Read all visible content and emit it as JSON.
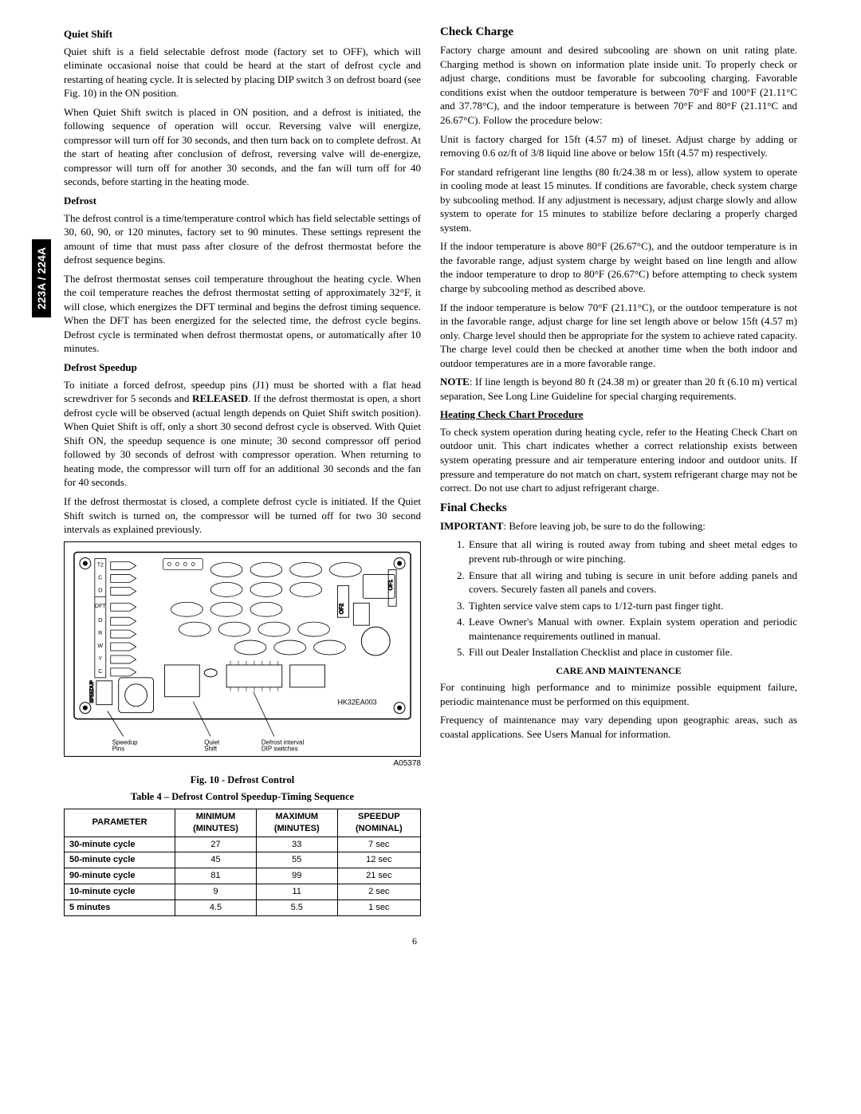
{
  "sidebar_tab": "223A / 224A",
  "left": {
    "quiet_shift_h": "Quiet Shift",
    "quiet_shift_p1": "Quiet shift is a field selectable defrost mode (factory set to OFF), which will eliminate occasional noise that could be heard at the start of defrost cycle and restarting of heating cycle. It is selected by placing DIP switch 3 on defrost board (see Fig. 10) in the ON position.",
    "quiet_shift_p2": "When Quiet Shift switch is placed in ON position, and a defrost is initiated, the following sequence of operation will occur. Reversing valve will energize, compressor will turn off for 30 seconds, and then turn back on to complete defrost. At the start of heating after conclusion of defrost, reversing valve will de-energize, compressor will turn off for another 30 seconds, and the fan will turn off for 40 seconds, before starting in the heating mode.",
    "defrost_h": "Defrost",
    "defrost_p1": "The defrost control is a time/temperature control which has field selectable settings of 30, 60, 90, or 120 minutes, factory set to 90 minutes. These settings represent the amount of time that must pass after closure of the defrost thermostat before the defrost sequence begins.",
    "defrost_p2": "The defrost thermostat senses coil temperature throughout the heating cycle. When the coil temperature reaches the defrost thermostat setting of approximately 32°F, it will close, which energizes the DFT terminal and begins the defrost timing sequence. When the DFT has been energized for the selected time, the defrost cycle begins. Defrost cycle is terminated when defrost thermostat opens, or automatically after 10 minutes.",
    "speedup_h": "Defrost Speedup",
    "speedup_p1": "To initiate a forced defrost, speedup pins (J1) must be shorted with a flat head screwdriver for 5 seconds and RELEASED. If the defrost thermostat is open, a short defrost cycle will be observed (actual length depends on Quiet Shift switch position). When Quiet Shift is off, only a short 30 second defrost cycle is observed. With Quiet Shift ON, the speedup sequence is one minute; 30 second compressor off period followed by 30 seconds of defrost with compressor operation. When returning to heating mode, the compressor will turn off for an additional 30 seconds and the fan for 40 seconds.",
    "speedup_p2": "If the defrost thermostat is closed, a complete defrost cycle is initiated. If the Quiet Shift switch is turned on, the compressor will be turned off for two 30 second intervals as explained previously.",
    "diagram": {
      "part_no": "HK32EA003",
      "lbl_speedup": "Speedup\nPins",
      "lbl_quiet": "Quiet\nShift",
      "lbl_dip": "Defrost interval\nDIP switches",
      "terminals_left": [
        "T2",
        "C",
        "O",
        "DFT",
        "O",
        "R",
        "W",
        "Y",
        "C"
      ],
      "footer_code": "A05378"
    },
    "fig_caption": "Fig. 10 - Defrost Control",
    "table_caption": "Table 4 – Defrost Control Speedup-Timing Sequence",
    "table": {
      "headers": [
        "PARAMETER",
        "MINIMUM (MINUTES)",
        "MAXIMUM (MINUTES)",
        "SPEEDUP (NOMINAL)"
      ],
      "rows": [
        [
          "30-minute cycle",
          "27",
          "33",
          "7 sec"
        ],
        [
          "50-minute cycle",
          "45",
          "55",
          "12 sec"
        ],
        [
          "90-minute cycle",
          "81",
          "99",
          "21 sec"
        ],
        [
          "10-minute cycle",
          "9",
          "11",
          "2 sec"
        ],
        [
          "5 minutes",
          "4.5",
          "5.5",
          "1 sec"
        ]
      ]
    }
  },
  "right": {
    "check_h": "Check Charge",
    "check_p1": "Factory charge amount and desired subcooling are shown on unit rating plate. Charging method is shown on information plate inside unit. To properly check or adjust charge, conditions must be favorable for subcooling charging. Favorable conditions exist when the outdoor temperature is between 70°F and 100°F (21.11°C and 37.78°C), and the indoor temperature is between 70°F and 80°F (21.11°C and 26.67°C). Follow the procedure below:",
    "check_p2": "Unit is factory charged for 15ft (4.57 m) of lineset. Adjust charge by adding or removing 0.6 oz/ft of 3/8 liquid line above or below 15ft (4.57 m) respectively.",
    "check_p3": "For standard refrigerant line lengths (80 ft/24.38 m or less), allow system to operate in cooling mode at least 15 minutes. If conditions are favorable, check system charge by subcooling method. If any adjustment is necessary, adjust charge slowly and allow system to operate for 15 minutes to stabilize before declaring a properly charged system.",
    "check_p4": "If the indoor temperature is above 80°F (26.67°C), and the outdoor temperature is in the favorable range, adjust system charge by weight based on line length and allow the indoor temperature to drop to 80°F (26.67°C) before attempting to check system charge by subcooling method as described above.",
    "check_p5": "If the indoor temperature is below 70°F (21.11°C), or the outdoor temperature is not in the favorable range, adjust charge for line set length above or below 15ft (4.57 m) only. Charge level should then be appropriate for the system to achieve rated capacity. The charge level could then be checked at another time when the both indoor and outdoor temperatures are in a more favorable range.",
    "check_note_label": "NOTE",
    "check_note": ": If line length is beyond 80 ft (24.38 m) or greater than 20 ft (6.10 m) vertical separation, See Long Line Guideline for special charging requirements.",
    "heat_h": "Heating Check Chart Procedure",
    "heat_p": "To check system operation during heating cycle, refer to the Heating Check Chart on outdoor unit. This chart indicates whether a correct relationship exists between system operating pressure and air temperature entering indoor and outdoor units. If pressure and temperature do not match on chart, system refrigerant charge may not be correct. Do not use chart to adjust refrigerant charge.",
    "final_h": "Final Checks",
    "important_label": "IMPORTANT",
    "important": ": Before leaving job, be sure to do the following:",
    "finals": [
      "Ensure that all wiring is routed away from tubing and sheet metal edges to prevent rub-through or wire pinching.",
      "Ensure that all wiring and tubing is secure in unit before adding panels and covers. Securely fasten all panels and covers.",
      "Tighten service valve stem caps to 1/12-turn past finger tight.",
      "Leave Owner's Manual with owner. Explain system operation and periodic maintenance requirements outlined in manual.",
      "Fill out Dealer Installation Checklist and place in customer file."
    ],
    "care_h": "CARE AND MAINTENANCE",
    "care_p1": "For continuing high performance and to minimize possible equipment failure, periodic maintenance must be performed on this equipment.",
    "care_p2": "Frequency of maintenance may vary depending upon geographic areas, such as coastal applications. See Users Manual for information."
  },
  "page_number": "6"
}
